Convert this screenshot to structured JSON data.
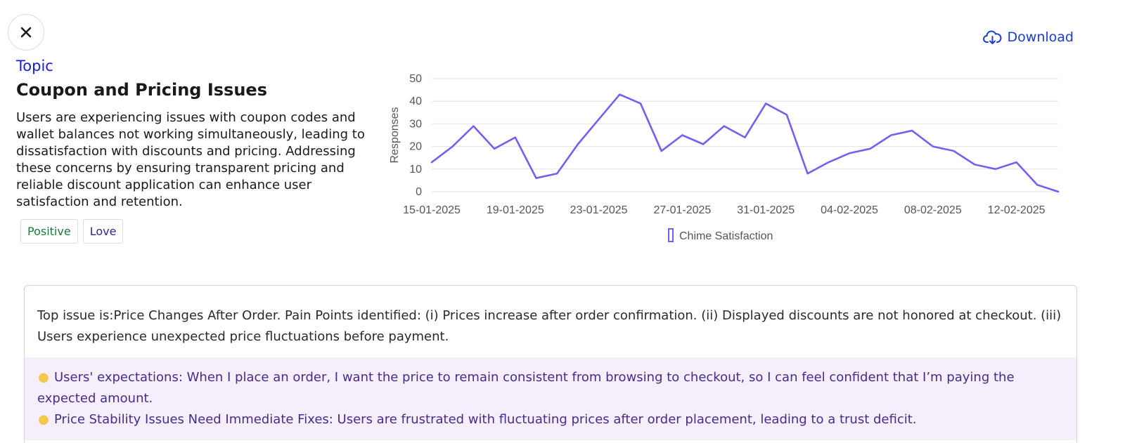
{
  "header": {
    "download_label": "Download"
  },
  "topic": {
    "label": "Topic",
    "title": "Coupon and Pricing Issues",
    "description": "Users are experiencing issues with coupon codes and wallet balances not working simultaneously, leading to dissatisfaction with discounts and pricing. Addressing these concerns by ensuring transparent pricing and reliable discount application can enhance user satisfaction and retention.",
    "tags": [
      "Positive",
      "Love"
    ]
  },
  "chart_data": {
    "type": "line",
    "ylabel": "Responses",
    "ylim": [
      0,
      50
    ],
    "yticks": [
      0,
      10,
      20,
      30,
      40,
      50
    ],
    "xtick_labels": [
      "15-01-2025",
      "19-01-2025",
      "23-01-2025",
      "27-01-2025",
      "31-01-2025",
      "04-02-2025",
      "08-02-2025",
      "12-02-2025"
    ],
    "legend_position": "bottom",
    "grid": true,
    "series": [
      {
        "name": "Chime Satisfaction",
        "color": "#7b5cf0",
        "values": [
          13,
          20,
          29,
          19,
          24,
          6,
          8,
          21,
          32,
          43,
          39,
          18,
          25,
          21,
          29,
          24,
          39,
          34,
          8,
          13,
          17,
          19,
          25,
          27,
          20,
          18,
          12,
          10,
          13,
          3,
          0
        ]
      }
    ]
  },
  "insight": {
    "top_issue": "Top issue is:Price Changes After Order. Pain Points identified: (i) Prices increase after order confirmation. (ii) Displayed discounts are not honored at checkout. (iii) Users experience unexpected price fluctuations before payment.",
    "expectations": "Users' expectations: When I place an order, I want the price to remain consistent from browsing to checkout, so I can feel confident that I’m paying the expected amount.",
    "stability": "Price Stability Issues Need Immediate Fixes: Users are frustrated with fluctuating prices after order placement, leading to a trust deficit."
  }
}
